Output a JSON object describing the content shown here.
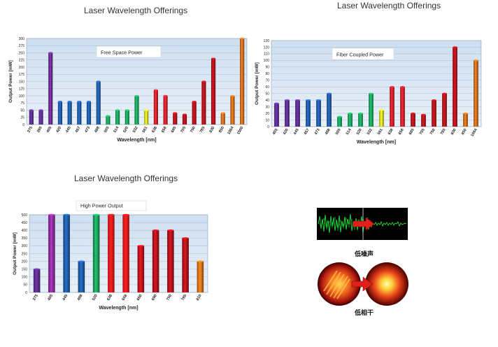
{
  "titles": {
    "chart1": "Laser Wavelength Offerings",
    "chart2": "Laser Wavelength Offerings",
    "chart3": "Laser Wavelength Offerings"
  },
  "images": {
    "noise_caption": "低噪声",
    "coherence_caption": "低相干"
  },
  "chart_data": [
    {
      "type": "bar",
      "title": "Laser Wavelength Offerings",
      "subtitle": "Free Space Power",
      "xlabel": "Wavelength [nm]",
      "ylabel": "Output Power [mW]",
      "ylim": [
        0,
        300
      ],
      "yticks": [
        0,
        25,
        50,
        75,
        100,
        125,
        150,
        175,
        200,
        225,
        250,
        275,
        300
      ],
      "grid": true,
      "categories": [
        "375",
        "395",
        "405",
        "420",
        "445",
        "457",
        "473",
        "488",
        "505",
        "514",
        "520",
        "532",
        "561",
        "638",
        "658",
        "685",
        "705",
        "750",
        "785",
        "830",
        "850",
        "1064",
        "1500"
      ],
      "values": [
        50,
        50,
        250,
        80,
        80,
        80,
        80,
        150,
        30,
        50,
        50,
        100,
        50,
        120,
        100,
        40,
        35,
        80,
        150,
        230,
        40,
        100,
        300
      ],
      "colors": [
        "#5b2d8e",
        "#5b2d8e",
        "#6a2d8f",
        "#1f5aa6",
        "#1f5aa6",
        "#1f5aa6",
        "#1f5aa6",
        "#1f5aa6",
        "#1aa05a",
        "#1aa05a",
        "#1aa05a",
        "#1aa05a",
        "#d8e021",
        "#d9202a",
        "#d9202a",
        "#b3121a",
        "#b3121a",
        "#b3121a",
        "#b3121a",
        "#b3121a",
        "#c96a1a",
        "#c96a1a",
        "#c96a1a"
      ]
    },
    {
      "type": "bar",
      "title": "Laser Wavelength Offerings",
      "subtitle": "Fiber Coupled Power",
      "xlabel": "Wavelength [nm]",
      "ylabel": "Output Power [mW]",
      "ylim": [
        0,
        130
      ],
      "yticks": [
        0,
        10,
        20,
        30,
        40,
        50,
        60,
        70,
        80,
        90,
        100,
        110,
        120,
        130
      ],
      "grid": true,
      "categories": [
        "405",
        "420",
        "445",
        "457",
        "473",
        "488",
        "505",
        "514",
        "520",
        "532",
        "561",
        "638",
        "658",
        "685",
        "705",
        "750",
        "785",
        "830",
        "850",
        "1064"
      ],
      "values": [
        35,
        40,
        40,
        40,
        40,
        50,
        15,
        20,
        20,
        50,
        25,
        60,
        60,
        20,
        18,
        40,
        50,
        120,
        20,
        100
      ],
      "colors": [
        "#5b2d8e",
        "#5b2d8e",
        "#5b2d8e",
        "#1f5aa6",
        "#1f5aa6",
        "#1f5aa6",
        "#1aa05a",
        "#1aa05a",
        "#1aa05a",
        "#1aa05a",
        "#d8e021",
        "#d9202a",
        "#d9202a",
        "#b3121a",
        "#b3121a",
        "#b3121a",
        "#b3121a",
        "#b3121a",
        "#c96a1a",
        "#c96a1a"
      ]
    },
    {
      "type": "bar",
      "title": "Laser Wavelength Offerings",
      "subtitle": "High Power Output",
      "xlabel": "Wavelength  [nm]",
      "ylabel": "Output Power [mW]",
      "ylim": [
        0,
        500
      ],
      "yticks": [
        0,
        50,
        100,
        150,
        200,
        250,
        300,
        350,
        400,
        450,
        500
      ],
      "grid": true,
      "categories": [
        "375",
        "405",
        "445",
        "488",
        "520",
        "638",
        "658",
        "660",
        "690",
        "750",
        "785",
        "810"
      ],
      "values": [
        150,
        500,
        500,
        200,
        500,
        500,
        500,
        300,
        400,
        400,
        350,
        200
      ],
      "colors": [
        "#5b2d8e",
        "#8e2d9e",
        "#1f5aa6",
        "#1f5aa6",
        "#1aa05a",
        "#ff1a1a",
        "#ff1a1a",
        "#c0121a",
        "#b3121a",
        "#b3121a",
        "#b3121a",
        "#d9701a"
      ]
    }
  ]
}
